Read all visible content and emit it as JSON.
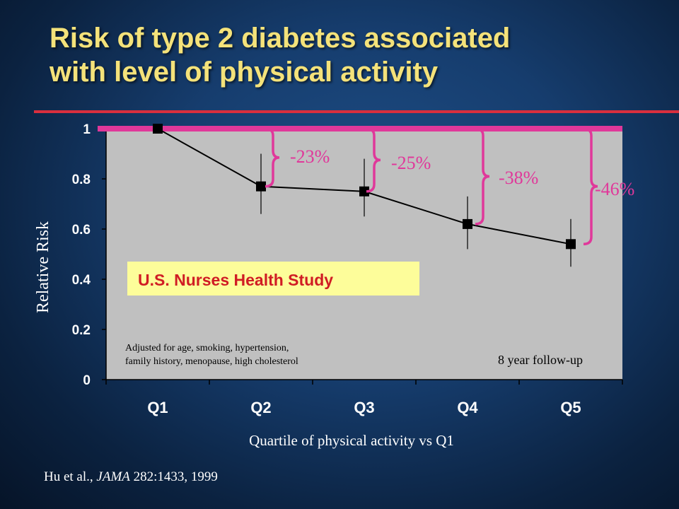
{
  "title_line1": "Risk of type 2 diabetes associated",
  "title_line2": "with level of physical activity",
  "citation": {
    "authors": "Hu et al., ",
    "journal": "JAMA",
    "ref": " 282:1433, 1999"
  },
  "colors": {
    "title": "#f4e27a",
    "rule": "#d92f3e",
    "plot_bg": "#c0c0c0",
    "bracket": "#e0389a",
    "study_box": "#fdfd9a",
    "study_text": "#d01c24"
  },
  "chart_data": {
    "type": "line",
    "categories": [
      "Q1",
      "Q2",
      "Q3",
      "Q4",
      "Q5"
    ],
    "values": [
      1.0,
      0.77,
      0.75,
      0.62,
      0.54
    ],
    "error_low": [
      null,
      0.66,
      0.65,
      0.52,
      0.45
    ],
    "error_high": [
      null,
      0.9,
      0.88,
      0.73,
      0.64
    ],
    "ylim": [
      0,
      1
    ],
    "yticks": [
      "0",
      "0.2",
      "0.4",
      "0.6",
      "0.8",
      "1"
    ],
    "ylabel": "Relative Risk",
    "xlabel": "Quartile of physical activity vs Q1",
    "reference_line": 1,
    "grid": false,
    "annotations": {
      "reductions": [
        "-23%",
        "-25%",
        "-38%",
        "-46%"
      ],
      "study": "U.S. Nurses Health Study",
      "adjusted_line1": "Adjusted for age, smoking, hypertension,",
      "adjusted_line2": "family history, menopause, high cholesterol",
      "followup": "8 year follow-up"
    }
  }
}
